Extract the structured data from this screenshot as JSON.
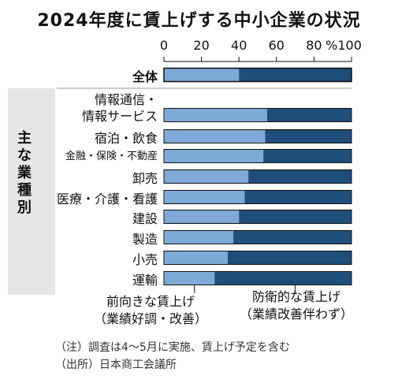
{
  "colors": {
    "positive": "#7fa9d6",
    "defensive": "#1f4e7a",
    "outline": "#111111",
    "side_panel": "#e6e6e6"
  },
  "chart_data": {
    "type": "bar",
    "orientation": "horizontal",
    "stacked": true,
    "title": "2024年度に賃上げする中小企業の状況",
    "x_ticks": [
      "0",
      "20",
      "40",
      "60",
      "80",
      "%100"
    ],
    "xlim": [
      0,
      100
    ],
    "side_label": "主な業種別",
    "categories": [
      "全体",
      "情報通信・情報サービス",
      "宿泊・飲食",
      "金融・保険・不動産",
      "卸売",
      "医療・介護・看護",
      "建設",
      "製造",
      "小売",
      "運輸"
    ],
    "category_label_lines": [
      [
        "全体"
      ],
      [
        "情報通信・",
        "情報サービス"
      ],
      [
        "宿泊・飲食"
      ],
      [
        "金融・保険・不動産"
      ],
      [
        "卸売"
      ],
      [
        "医療・介護・看護"
      ],
      [
        "建設"
      ],
      [
        "製造"
      ],
      [
        "小売"
      ],
      [
        "運輸"
      ]
    ],
    "series": [
      {
        "name": "前向きな賃上げ（業績好調・改善）",
        "values": [
          40,
          55,
          54,
          53,
          45,
          43,
          40,
          37,
          34,
          27
        ]
      },
      {
        "name": "防衛的な賃上げ（業績改善伴わず）",
        "values": [
          60,
          45,
          46,
          47,
          55,
          57,
          60,
          63,
          66,
          73
        ]
      }
    ],
    "legend": [
      {
        "lines": [
          "前向きな賃上げ",
          "（業績好調・改善）"
        ]
      },
      {
        "lines": [
          "防衛的な賃上げ",
          "（業績改善伴わず）"
        ]
      }
    ],
    "grid": false,
    "notes": [
      "（注）調査は4～5月に実施、賃上げ予定を含む",
      "（出所）日本商工会議所"
    ]
  }
}
